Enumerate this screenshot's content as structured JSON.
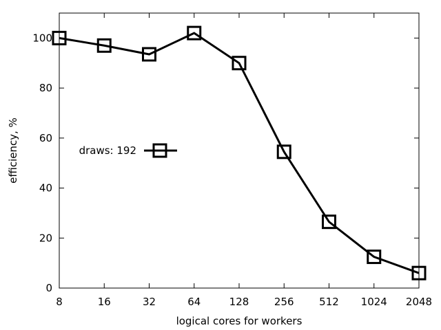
{
  "chart_data": {
    "type": "line",
    "title": "",
    "xlabel": "logical cores for workers",
    "ylabel": "efficiency, %",
    "x_tick_labels": [
      "8",
      "16",
      "32",
      "64",
      "128",
      "256",
      "512",
      "1024",
      "2048"
    ],
    "x_scale": "log2",
    "xlim": [
      8,
      2048
    ],
    "ylim": [
      0,
      110
    ],
    "y_ticks": [
      0,
      20,
      40,
      60,
      80,
      100
    ],
    "y_tick_labels": [
      "0",
      "20",
      "40",
      "60",
      "80",
      "100"
    ],
    "grid": false,
    "legend_position": "left-middle",
    "series": [
      {
        "name": "draws: 192",
        "marker": "open-square",
        "color": "#000000",
        "x": [
          8,
          16,
          32,
          64,
          128,
          256,
          512,
          1024,
          2048
        ],
        "y": [
          100,
          97,
          93.5,
          102,
          90,
          54.5,
          26.5,
          12.5,
          6
        ]
      }
    ]
  }
}
